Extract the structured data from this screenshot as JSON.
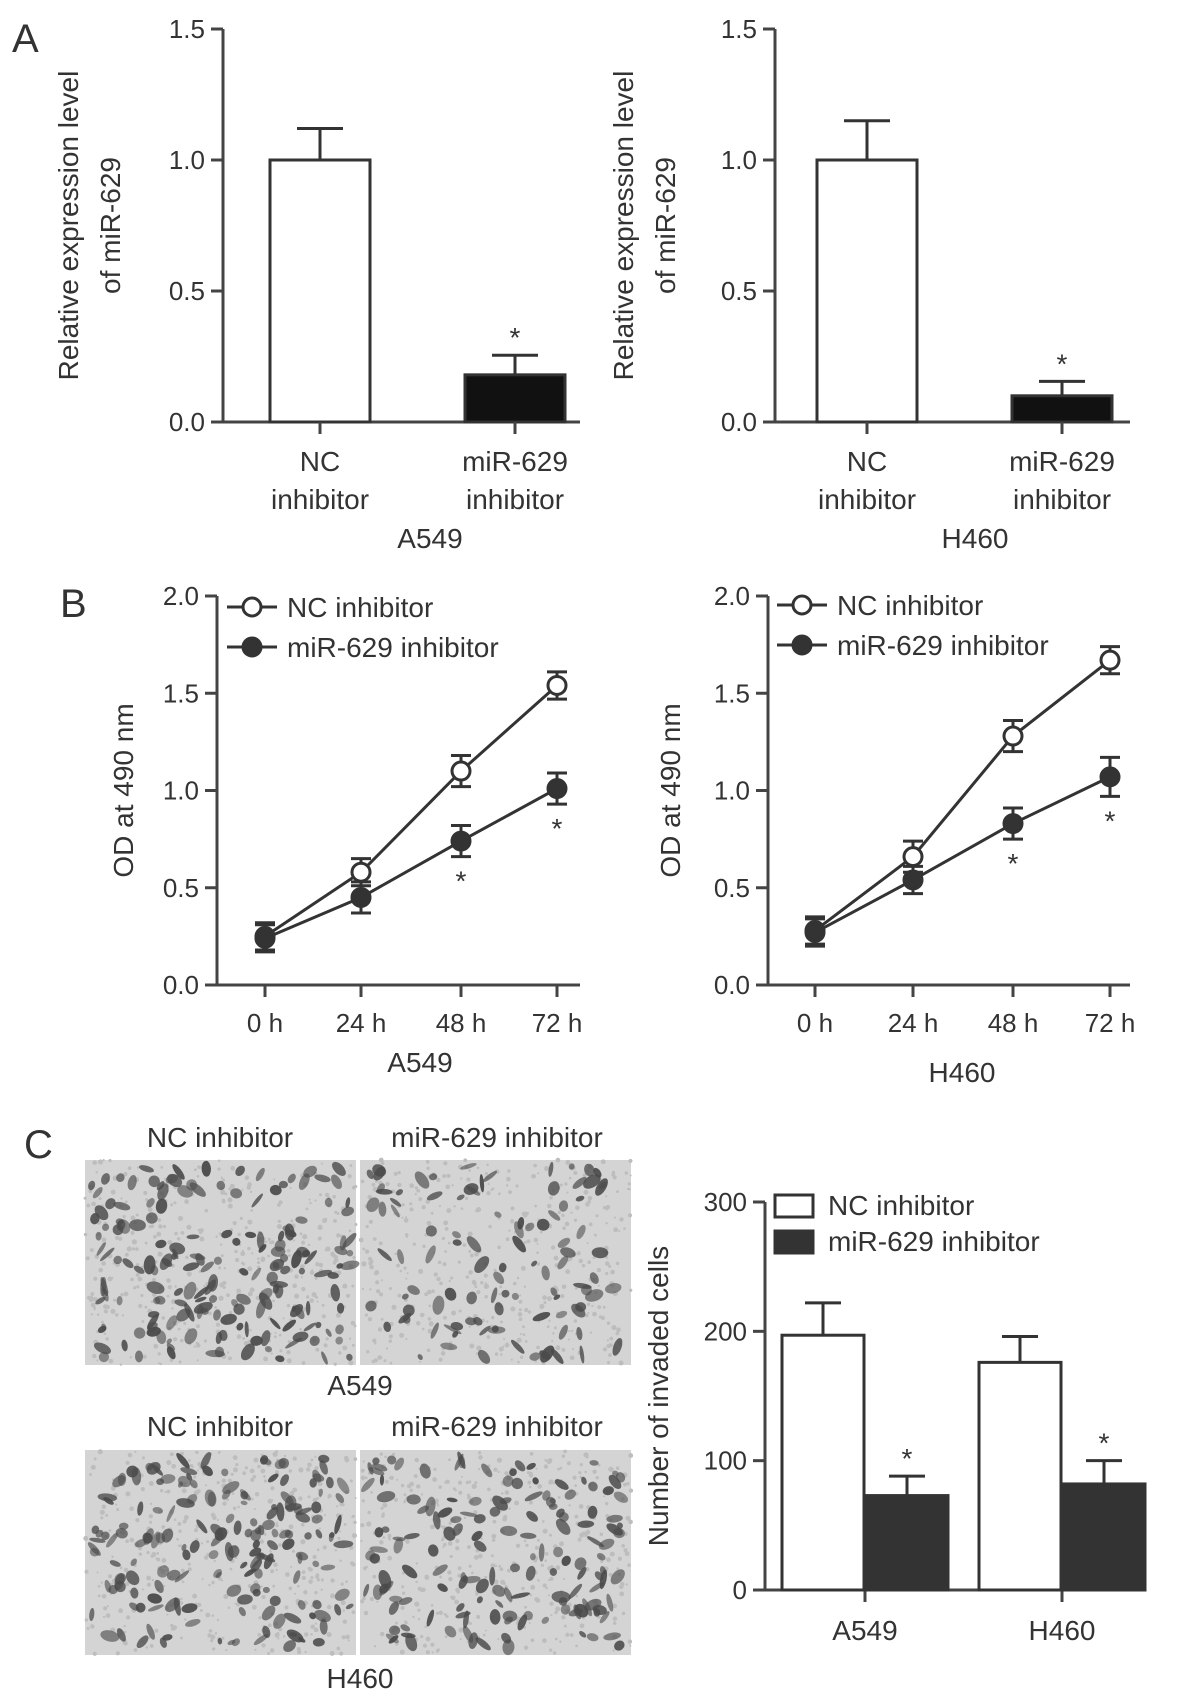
{
  "panels": {
    "a": "A",
    "b": "B",
    "c": "C"
  },
  "chart_data": [
    {
      "id": "A_A549",
      "type": "bar",
      "categories": [
        [
          "NC",
          "inhibitor"
        ],
        [
          "miR-629",
          "inhibitor"
        ]
      ],
      "values": [
        1.0,
        0.18
      ],
      "errors": [
        0.12,
        0.075
      ],
      "fills": [
        "#ffffff",
        "#111111"
      ],
      "ylabel": [
        "Relative expression level",
        "of miR-629"
      ],
      "xlabel": "A549",
      "ylim": [
        0,
        1.5
      ],
      "yticks": [
        "0.0",
        "0.5",
        "1.0",
        "1.5"
      ],
      "significance": [
        "",
        "*"
      ]
    },
    {
      "id": "A_H460",
      "type": "bar",
      "categories": [
        [
          "NC",
          "inhibitor"
        ],
        [
          "miR-629",
          "inhibitor"
        ]
      ],
      "values": [
        1.0,
        0.1
      ],
      "errors": [
        0.15,
        0.055
      ],
      "fills": [
        "#ffffff",
        "#111111"
      ],
      "ylabel": [
        "Relative expression level",
        "of miR-629"
      ],
      "xlabel": "H460",
      "ylim": [
        0,
        1.5
      ],
      "yticks": [
        "0.0",
        "0.5",
        "1.0",
        "1.5"
      ],
      "significance": [
        "",
        "*"
      ]
    },
    {
      "id": "B_A549",
      "type": "line",
      "x": [
        "0 h",
        "24 h",
        "48 h",
        "72 h"
      ],
      "series": [
        {
          "name": "NC inhibitor",
          "marker": "open",
          "values": [
            0.25,
            0.58,
            1.1,
            1.54
          ],
          "errors": [
            0.07,
            0.07,
            0.08,
            0.07
          ],
          "significance": [
            "",
            "",
            "",
            ""
          ]
        },
        {
          "name": "miR-629 inhibitor",
          "marker": "filled",
          "values": [
            0.24,
            0.45,
            0.74,
            1.01
          ],
          "errors": [
            0.07,
            0.08,
            0.08,
            0.08
          ],
          "significance": [
            "",
            "",
            "*",
            "*"
          ]
        }
      ],
      "ylabel": "OD at 490 nm",
      "xlabel": "A549",
      "ylim": [
        0,
        2.0
      ],
      "yticks": [
        "0.0",
        "0.5",
        "1.0",
        "1.5",
        "2.0"
      ],
      "legend": "top-left"
    },
    {
      "id": "B_H460",
      "type": "line",
      "x": [
        "0 h",
        "24 h",
        "48 h",
        "72 h"
      ],
      "series": [
        {
          "name": "NC inhibitor",
          "marker": "open",
          "values": [
            0.28,
            0.66,
            1.28,
            1.67
          ],
          "errors": [
            0.07,
            0.08,
            0.08,
            0.07
          ],
          "significance": [
            "",
            "",
            "",
            ""
          ]
        },
        {
          "name": "miR-629 inhibitor",
          "marker": "filled",
          "values": [
            0.27,
            0.54,
            0.83,
            1.07
          ],
          "errors": [
            0.07,
            0.07,
            0.08,
            0.1
          ],
          "significance": [
            "",
            "",
            "*",
            "*"
          ]
        }
      ],
      "ylabel": "OD at 490 nm",
      "xlabel": "H460",
      "ylim": [
        0,
        2.0
      ],
      "yticks": [
        "0.0",
        "0.5",
        "1.0",
        "1.5",
        "2.0"
      ],
      "legend": "top-left"
    },
    {
      "id": "C_invasion",
      "type": "bar",
      "categories": [
        "A549",
        "H460"
      ],
      "series": [
        {
          "name": "NC inhibitor",
          "fill": "#ffffff",
          "values": [
            197,
            176
          ],
          "errors": [
            25,
            20
          ],
          "significance": [
            "",
            ""
          ]
        },
        {
          "name": "miR-629 inhibitor",
          "fill": "#333333",
          "values": [
            73,
            82
          ],
          "errors": [
            15,
            18
          ],
          "significance": [
            "*",
            "*"
          ]
        }
      ],
      "ylabel": "Number of invaded cells",
      "xlabel": "",
      "ylim": [
        0,
        300
      ],
      "yticks": [
        "0",
        "100",
        "200",
        "300"
      ],
      "legend": "top"
    }
  ],
  "micrographs": {
    "row1": {
      "left_label": "NC inhibitor",
      "right_label": "miR-629 inhibitor",
      "cell_line": "A549",
      "density": [
        175,
        100
      ]
    },
    "row2": {
      "left_label": "NC inhibitor",
      "right_label": "miR-629 inhibitor",
      "cell_line": "H460",
      "density": [
        175,
        150
      ]
    }
  },
  "colors": {
    "ink": "#333333",
    "axis": "#444444",
    "photo_bg": "#d4d4d4",
    "cell": "#4a4a4a"
  }
}
